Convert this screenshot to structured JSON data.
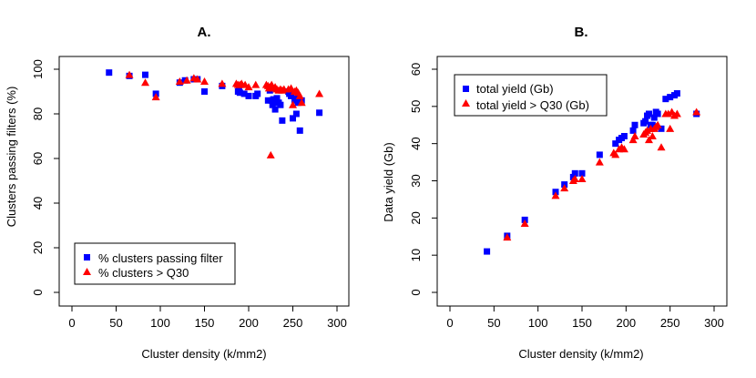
{
  "chart_data": [
    {
      "type": "scatter",
      "title": "A.",
      "xlabel": "Cluster density (k/mm2)",
      "ylabel": "Clusters passing filters (%)",
      "xlim": [
        0,
        300
      ],
      "ylim": [
        0,
        100
      ],
      "xticks": [
        0,
        50,
        100,
        150,
        200,
        250,
        300
      ],
      "yticks": [
        0,
        20,
        40,
        60,
        80,
        100
      ],
      "legend_position": "bottom-left",
      "series": [
        {
          "name": "% clusters passing filter",
          "marker": "square",
          "color": "#0000ff",
          "points": [
            [
              42,
              98.5
            ],
            [
              65,
              97
            ],
            [
              83,
              97.5
            ],
            [
              95,
              89
            ],
            [
              122,
              94
            ],
            [
              128,
              95
            ],
            [
              138,
              95.5
            ],
            [
              142,
              95.5
            ],
            [
              150,
              90
            ],
            [
              170,
              92.5
            ],
            [
              188,
              90
            ],
            [
              189,
              90.5
            ],
            [
              190,
              89.5
            ],
            [
              195,
              89
            ],
            [
              200,
              88
            ],
            [
              208,
              88
            ],
            [
              210,
              89
            ],
            [
              222,
              86
            ],
            [
              224,
              90.5
            ],
            [
              226,
              86
            ],
            [
              227,
              84
            ],
            [
              228,
              86.5
            ],
            [
              230,
              82
            ],
            [
              232,
              87
            ],
            [
              234,
              85
            ],
            [
              236,
              84
            ],
            [
              238,
              77
            ],
            [
              245,
              90
            ],
            [
              246,
              89
            ],
            [
              248,
              88
            ],
            [
              250,
              78
            ],
            [
              252,
              86
            ],
            [
              253,
              87
            ],
            [
              254,
              80
            ],
            [
              256,
              85
            ],
            [
              258,
              72.5
            ],
            [
              260,
              86
            ],
            [
              280,
              80.5
            ]
          ]
        },
        {
          "name": "% clusters > Q30",
          "marker": "triangle",
          "color": "#ff0000",
          "points": [
            [
              65,
              97.5
            ],
            [
              83,
              94
            ],
            [
              95,
              87.5
            ],
            [
              122,
              94.5
            ],
            [
              130,
              95
            ],
            [
              138,
              96
            ],
            [
              142,
              95.5
            ],
            [
              150,
              94.5
            ],
            [
              170,
              93.5
            ],
            [
              186,
              93.5
            ],
            [
              188,
              93
            ],
            [
              190,
              93
            ],
            [
              192,
              93.5
            ],
            [
              196,
              93
            ],
            [
              200,
              92
            ],
            [
              208,
              93
            ],
            [
              220,
              93
            ],
            [
              222,
              92.5
            ],
            [
              223,
              91.5
            ],
            [
              224,
              92
            ],
            [
              225,
              61.5
            ],
            [
              226,
              93
            ],
            [
              228,
              91.5
            ],
            [
              230,
              92
            ],
            [
              232,
              91
            ],
            [
              234,
              90.5
            ],
            [
              236,
              91
            ],
            [
              238,
              90.5
            ],
            [
              240,
              91
            ],
            [
              245,
              91
            ],
            [
              248,
              91.5
            ],
            [
              250,
              84
            ],
            [
              252,
              90
            ],
            [
              254,
              90.5
            ],
            [
              256,
              89.5
            ],
            [
              258,
              88
            ],
            [
              260,
              85
            ],
            [
              280,
              89
            ]
          ]
        }
      ]
    },
    {
      "type": "scatter",
      "title": "B.",
      "xlabel": "Cluster density (k/mm2)",
      "ylabel": "Data yield (Gb)",
      "xlim": [
        0,
        300
      ],
      "ylim": [
        0,
        60
      ],
      "xticks": [
        0,
        50,
        100,
        150,
        200,
        250,
        300
      ],
      "yticks": [
        0,
        10,
        20,
        30,
        40,
        50,
        60
      ],
      "legend_position": "top-left",
      "series": [
        {
          "name": "total yield (Gb)",
          "marker": "square",
          "color": "#0000ff",
          "points": [
            [
              42,
              11
            ],
            [
              65,
              15.2
            ],
            [
              85,
              19.5
            ],
            [
              120,
              27
            ],
            [
              130,
              29
            ],
            [
              140,
              31
            ],
            [
              142,
              32
            ],
            [
              150,
              32
            ],
            [
              170,
              37
            ],
            [
              188,
              40
            ],
            [
              192,
              41
            ],
            [
              195,
              41.5
            ],
            [
              198,
              42
            ],
            [
              208,
              43.5
            ],
            [
              210,
              45
            ],
            [
              220,
              45.5
            ],
            [
              222,
              46
            ],
            [
              224,
              47.5
            ],
            [
              226,
              48
            ],
            [
              228,
              45
            ],
            [
              230,
              45
            ],
            [
              232,
              47
            ],
            [
              234,
              48.5
            ],
            [
              236,
              48
            ],
            [
              240,
              44
            ],
            [
              245,
              52
            ],
            [
              250,
              52.5
            ],
            [
              255,
              53
            ],
            [
              258,
              53.5
            ],
            [
              280,
              48
            ]
          ]
        },
        {
          "name": "total yield > Q30 (Gb)",
          "marker": "triangle",
          "color": "#ff0000",
          "points": [
            [
              65,
              14.8
            ],
            [
              85,
              18.5
            ],
            [
              120,
              26
            ],
            [
              130,
              28
            ],
            [
              140,
              30
            ],
            [
              142,
              30.5
            ],
            [
              150,
              30.5
            ],
            [
              170,
              35
            ],
            [
              186,
              37.5
            ],
            [
              188,
              37
            ],
            [
              192,
              38.5
            ],
            [
              195,
              39
            ],
            [
              198,
              38.5
            ],
            [
              208,
              41
            ],
            [
              210,
              42
            ],
            [
              220,
              42.5
            ],
            [
              222,
              43
            ],
            [
              224,
              43.5
            ],
            [
              226,
              41
            ],
            [
              228,
              44
            ],
            [
              230,
              42
            ],
            [
              232,
              44
            ],
            [
              234,
              44.5
            ],
            [
              236,
              45
            ],
            [
              240,
              39
            ],
            [
              245,
              48
            ],
            [
              248,
              48
            ],
            [
              250,
              44
            ],
            [
              252,
              48.5
            ],
            [
              255,
              47.5
            ],
            [
              258,
              48
            ],
            [
              280,
              48.5
            ]
          ]
        }
      ]
    }
  ]
}
